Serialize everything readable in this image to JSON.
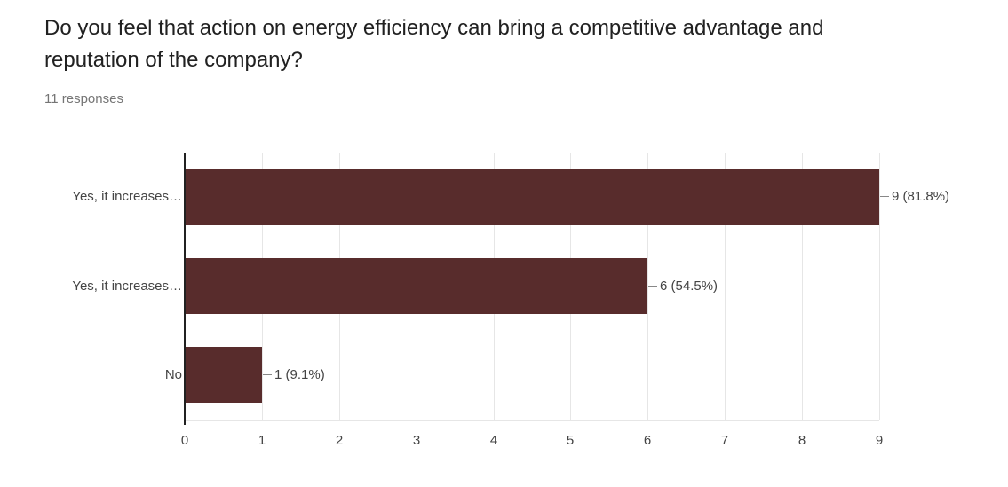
{
  "question": {
    "title": "Do you feel that action on energy efficiency can bring a competitive advantage and reputation of the company?",
    "responses_label": "11 responses"
  },
  "chart_data": {
    "type": "bar",
    "orientation": "horizontal",
    "title": "Do you feel that action on energy efficiency can bring a competitive advantage and reputation of the company?",
    "categories": [
      "Yes, it increases…",
      "Yes, it increases…",
      "No"
    ],
    "values": [
      9,
      6,
      1
    ],
    "value_labels": [
      "9 (81.8%)",
      "6 (54.5%)",
      "1 (9.1%)"
    ],
    "x_ticks": [
      0,
      1,
      2,
      3,
      4,
      5,
      6,
      7,
      8,
      9
    ],
    "xlim": [
      0,
      9
    ],
    "grid": true,
    "legend": "none"
  },
  "colors": {
    "bar": "#582C2C",
    "title_text": "#212121",
    "subtitle_text": "#757575",
    "axis_text": "#444444",
    "gridline": "#e6e6e6",
    "axis_line": "#212121",
    "connector": "#888888"
  }
}
